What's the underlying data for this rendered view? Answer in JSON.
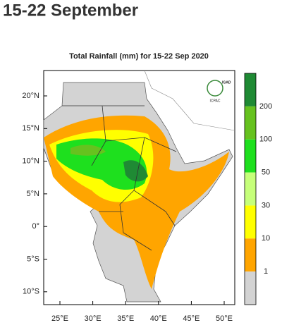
{
  "header": {
    "title": "15-22 September"
  },
  "map": {
    "title": "Total Rainfall (mm) for 15-22 Sep 2020",
    "lat_labels": [
      "20°N",
      "15°N",
      "10°N",
      "5°N",
      "0°",
      "5°S",
      "10°S"
    ],
    "lon_labels": [
      "25°E",
      "30°E",
      "35°E",
      "40°E",
      "45°E",
      "50°E"
    ],
    "logo": {
      "name": "IGAD",
      "org": "ICPAC"
    }
  },
  "legend": {
    "labels": [
      "200",
      "100",
      "50",
      "30",
      "10",
      "1"
    ],
    "colors": [
      "#1f8a34",
      "#66c21f",
      "#1ee01e",
      "#c6ff7a",
      "#ffff00",
      "#ffa500",
      "#d3d3d3"
    ]
  }
}
